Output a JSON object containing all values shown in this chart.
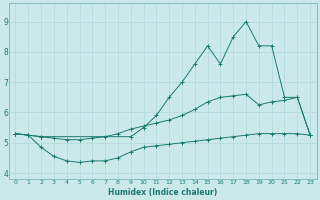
{
  "xlabel": "Humidex (Indice chaleur)",
  "xlim": [
    -0.5,
    23.5
  ],
  "ylim": [
    3.8,
    9.6
  ],
  "xticks": [
    0,
    1,
    2,
    3,
    4,
    5,
    6,
    7,
    8,
    9,
    10,
    11,
    12,
    13,
    14,
    15,
    16,
    17,
    18,
    19,
    20,
    21,
    22,
    23
  ],
  "yticks": [
    4,
    5,
    6,
    7,
    8,
    9
  ],
  "bg_color": "#cce9ea",
  "line_color": "#1a7a6e",
  "grid_color": "#b0d8da",
  "line1_x": [
    0,
    1,
    2,
    3,
    4,
    5,
    6,
    7,
    8,
    9,
    10,
    11,
    12,
    13,
    14,
    15,
    16,
    17,
    18,
    19,
    20,
    21,
    22,
    23
  ],
  "line1_y": [
    5.3,
    5.25,
    4.85,
    4.55,
    4.4,
    4.35,
    4.4,
    4.4,
    4.5,
    4.7,
    4.85,
    4.9,
    4.95,
    5.0,
    5.05,
    5.1,
    5.15,
    5.2,
    5.25,
    5.3,
    5.3,
    5.3,
    5.3,
    5.25
  ],
  "line2_x": [
    0,
    1,
    2,
    3,
    4,
    5,
    6,
    7,
    8,
    9,
    10,
    11,
    12,
    13,
    14,
    15,
    16,
    17,
    18,
    19,
    20,
    21,
    22,
    23
  ],
  "line2_y": [
    5.3,
    5.25,
    5.2,
    5.15,
    5.1,
    5.1,
    5.15,
    5.2,
    5.3,
    5.45,
    5.55,
    5.65,
    5.75,
    5.9,
    6.1,
    6.35,
    6.5,
    6.55,
    6.6,
    6.25,
    6.35,
    6.4,
    6.5,
    5.25
  ],
  "line3_x": [
    0,
    1,
    2,
    9,
    10,
    11,
    12,
    13,
    14,
    15,
    16,
    17,
    18,
    19,
    20,
    21,
    22,
    23
  ],
  "line3_y": [
    5.3,
    5.25,
    5.2,
    5.2,
    5.5,
    5.9,
    6.5,
    7.0,
    7.6,
    8.2,
    7.6,
    8.5,
    9.0,
    8.2,
    8.2,
    6.5,
    6.5,
    5.25
  ]
}
